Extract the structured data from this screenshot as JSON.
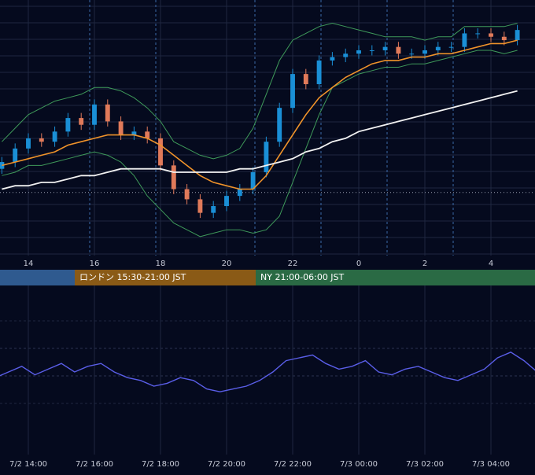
{
  "colors": {
    "background": "#050a1e",
    "grid": "#1e2740",
    "candle_up": "#1a8fd6",
    "candle_down": "#e07a5a",
    "bollinger": "#3f9a5a",
    "ma_short": "#f0932a",
    "ma_long": "#f2f2f2",
    "oscillator": "#5a5ee8",
    "session_tokyo": "#2f5a8f",
    "session_london": "#8a5a16",
    "session_ny": "#2a6a44"
  },
  "time_axis_top": {
    "ticks": [
      "14",
      "16",
      "18",
      "20",
      "22",
      "0",
      "2",
      "4"
    ]
  },
  "sessions": [
    {
      "label": "",
      "color": "#2f5a8f"
    },
    {
      "label": "ロンドン 15:30-21:00 JST",
      "color": "#8a5a16"
    },
    {
      "label": "NY 21:00-06:00 JST",
      "color": "#2a6a44"
    }
  ],
  "time_axis_bottom": {
    "ticks": [
      "7/2 14:00",
      "7/2 16:00",
      "7/2 18:00",
      "7/2 20:00",
      "7/2 22:00",
      "7/3 00:00",
      "7/3 02:00",
      "7/3 04:00"
    ]
  },
  "chart_data": [
    {
      "type": "candlestick",
      "title": "",
      "x_hours": [
        13.2,
        13.6,
        14.0,
        14.4,
        14.8,
        15.2,
        15.6,
        16.0,
        16.4,
        16.8,
        17.2,
        17.6,
        18.0,
        18.4,
        18.8,
        19.2,
        19.6,
        20.0,
        20.4,
        20.8,
        21.2,
        21.6,
        22.0,
        22.4,
        22.8,
        23.2,
        23.6,
        24.0,
        24.4,
        24.8,
        25.2,
        25.6,
        26.0,
        26.4,
        26.8,
        27.2,
        27.6,
        28.0,
        28.4,
        28.8
      ],
      "close": [
        66,
        70,
        73,
        72,
        75,
        79,
        77,
        83,
        78,
        74,
        75,
        73,
        65,
        58,
        55,
        51,
        53,
        56,
        58,
        63,
        72,
        82,
        92,
        89,
        96,
        97,
        98,
        99,
        99,
        100,
        98,
        98,
        99,
        100,
        100,
        104,
        104,
        103,
        102,
        105
      ],
      "bollinger_upper": [
        72,
        76,
        80,
        82,
        84,
        85,
        86,
        88,
        88,
        87,
        85,
        82,
        78,
        72,
        70,
        68,
        67,
        68,
        70,
        76,
        86,
        96,
        102,
        104,
        106,
        107,
        106,
        105,
        104,
        103,
        103,
        103,
        102,
        103,
        103,
        106,
        106,
        106,
        106,
        107
      ],
      "bollinger_lower": [
        62,
        63,
        65,
        65,
        66,
        67,
        68,
        69,
        68,
        66,
        62,
        56,
        52,
        48,
        46,
        44,
        45,
        46,
        46,
        45,
        46,
        50,
        60,
        70,
        80,
        88,
        90,
        92,
        93,
        94,
        94,
        95,
        95,
        96,
        97,
        98,
        99,
        99,
        98,
        99
      ],
      "ma_short": [
        65,
        66,
        67,
        68,
        69,
        71,
        72,
        73,
        74,
        74,
        74,
        73,
        71,
        68,
        65,
        62,
        60,
        59,
        58,
        58,
        62,
        68,
        74,
        80,
        85,
        88,
        91,
        93,
        95,
        96,
        96,
        97,
        97,
        98,
        98,
        99,
        100,
        101,
        101,
        102
      ],
      "ma_long": [
        58,
        59,
        59,
        60,
        60,
        61,
        62,
        62,
        63,
        64,
        64,
        64,
        64,
        63,
        63,
        63,
        63,
        63,
        64,
        64,
        65,
        66,
        67,
        69,
        70,
        72,
        73,
        75,
        76,
        77,
        78,
        79,
        80,
        81,
        82,
        83,
        84,
        85,
        86,
        87
      ],
      "reference_line": 57,
      "ylim": [
        40,
        112
      ],
      "grid": true
    },
    {
      "type": "line",
      "title": "",
      "series": [
        {
          "name": "",
          "values": [
            46,
            50,
            54,
            48,
            52,
            56,
            50,
            54,
            56,
            50,
            46,
            44,
            40,
            42,
            46,
            44,
            38,
            36,
            38,
            40,
            44,
            50,
            58,
            60,
            62,
            56,
            52,
            54,
            58,
            50,
            48,
            52,
            54,
            50,
            46,
            44,
            48,
            52,
            60,
            64,
            58,
            50,
            52,
            48
          ]
        }
      ],
      "x_hours": [
        13.0,
        13.4,
        13.8,
        14.2,
        14.6,
        15.0,
        15.4,
        15.8,
        16.2,
        16.6,
        17.0,
        17.4,
        17.8,
        18.2,
        18.6,
        19.0,
        19.4,
        19.8,
        20.2,
        20.6,
        21.0,
        21.4,
        21.8,
        22.2,
        22.6,
        23.0,
        23.4,
        23.8,
        24.2,
        24.6,
        25.0,
        25.4,
        25.8,
        26.2,
        26.6,
        27.0,
        27.4,
        27.8,
        28.2,
        28.6,
        29.0,
        29.4,
        29.8,
        30.2
      ],
      "ylim": [
        0,
        100
      ],
      "grid": true
    }
  ]
}
